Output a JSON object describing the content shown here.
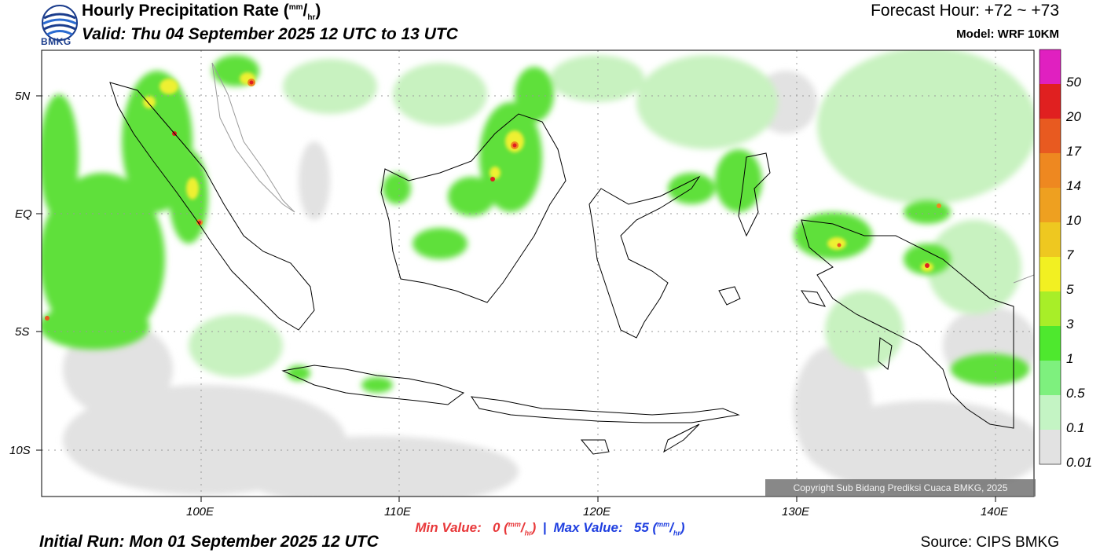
{
  "header": {
    "logo_text": "BMKG",
    "title_main": "Hourly Precipitation Rate (",
    "title_unit_num": "mm",
    "title_unit_sep": "/",
    "title_unit_den": "hr",
    "title_close": ")",
    "valid": "Valid: Thu 04 September 2025 12 UTC to 13 UTC",
    "forecast_hour": "Forecast Hour: +72 ~ +73",
    "model": "Model: WRF 10KM"
  },
  "footer": {
    "min_label": "Min Value:",
    "min_value": "0",
    "max_label": "Max Value:",
    "max_value": "55",
    "unit_num": "mm",
    "unit_den": "hr",
    "separator": "|",
    "initial_run": "Initial Run: Mon 01 September 2025 12 UTC",
    "source": "Source: CIPS BMKG",
    "copyright": "Copyright Sub Bidang Prediksi Cuaca BMKG, 2025"
  },
  "axes": {
    "y_labels": [
      "5N",
      "EQ",
      "5S",
      "10S"
    ],
    "x_labels": [
      "100E",
      "110E",
      "120E",
      "130E",
      "140E"
    ]
  },
  "legend": {
    "labels": [
      "50",
      "20",
      "17",
      "14",
      "10",
      "7",
      "5",
      "3",
      "1",
      "0.5",
      "0.1",
      "0.01"
    ],
    "colors": [
      "#e020c0",
      "#e02020",
      "#e85a20",
      "#ee8820",
      "#eea020",
      "#eec820",
      "#f2f022",
      "#a8ee28",
      "#4ee82e",
      "#7ef07e",
      "#c4f4c4",
      "#e2e2e2"
    ]
  },
  "colors": {
    "rain_light": "#c8f2c0",
    "rain_green": "#5ee03a",
    "rain_yellow": "#eef030",
    "rain_orange": "#ee8820",
    "rain_red": "#e02020",
    "no_rain_grey": "#e4e4e4",
    "coastline": "#000000"
  }
}
